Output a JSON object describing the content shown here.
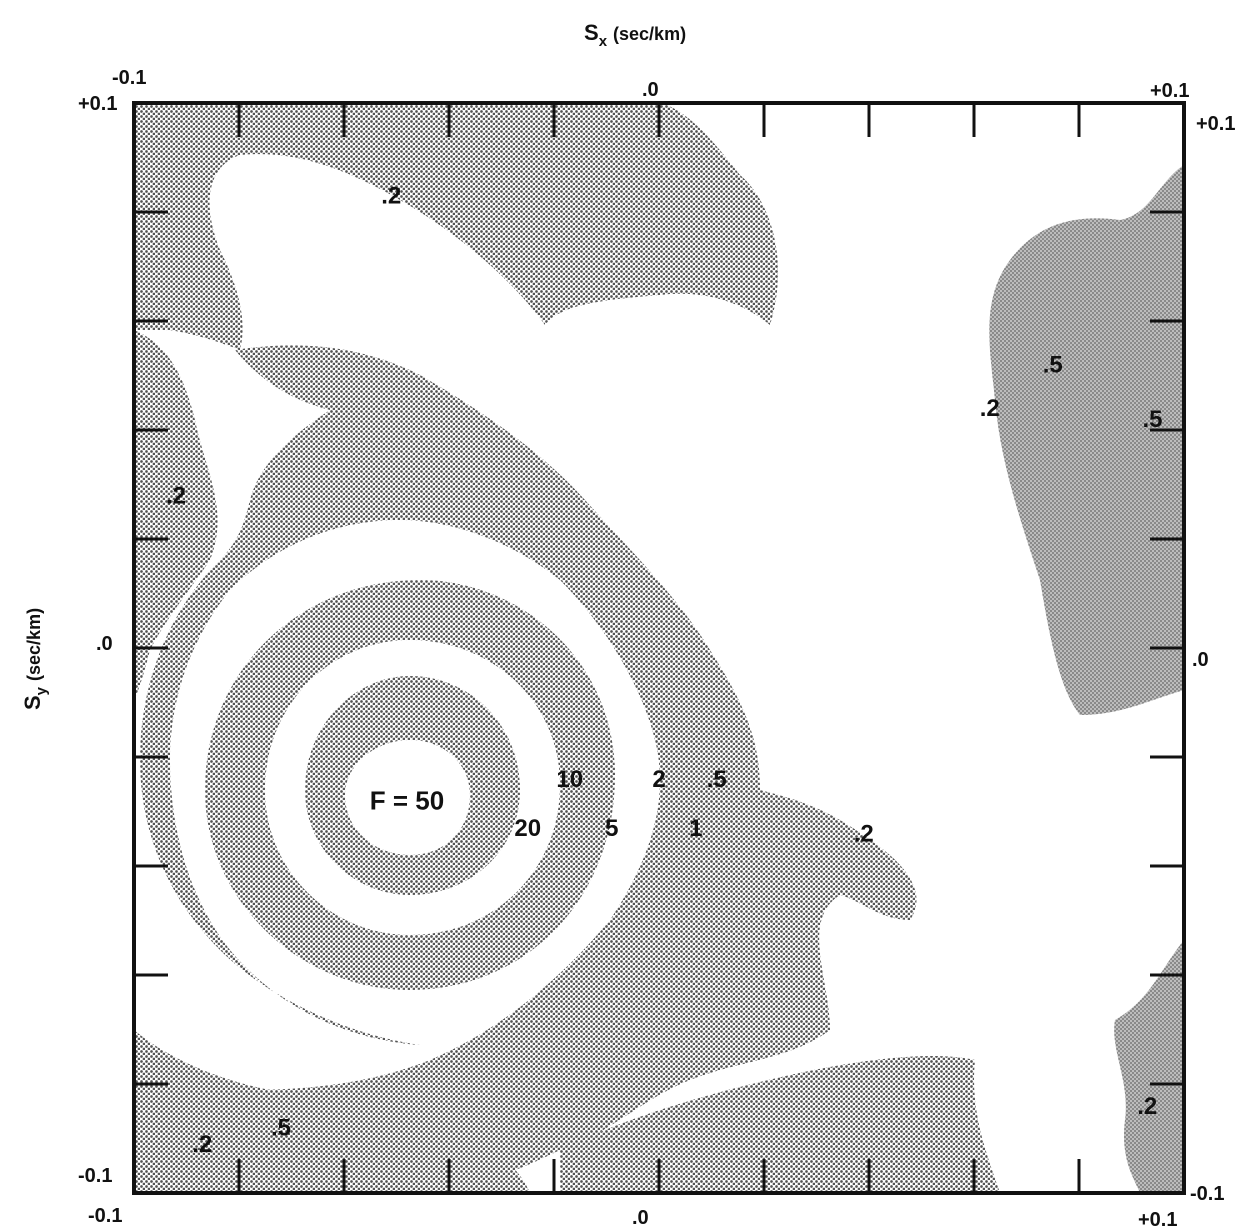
{
  "chart_data": {
    "type": "heatmap",
    "subtype": "contour",
    "title": "",
    "xlabel": "S",
    "xlabel_sub": "x",
    "xlabel_unit": "(sec/km)",
    "ylabel": "S",
    "ylabel_sub": "y",
    "ylabel_unit": "(sec/km)",
    "xlim": [
      -0.1,
      0.1
    ],
    "ylim": [
      -0.1,
      0.1
    ],
    "x_tick_labels": {
      "left": "-0.1",
      "mid": ".0",
      "right": "+0.1"
    },
    "y_tick_labels": {
      "top": "+0.1",
      "mid": ".0",
      "bottom": "-0.1"
    },
    "grid": false,
    "fill_colors": {
      "dotted_band": "#9a9a9a",
      "smooth_band": "#8c8c8c",
      "background": "#ffffff",
      "frame": "#111111"
    },
    "peak": {
      "label": "F = 50",
      "x": -0.048,
      "y": -0.028
    },
    "contour_levels": [
      0.2,
      0.5,
      1,
      2,
      5,
      10,
      20,
      50
    ],
    "contour_labels": [
      {
        "text": "10",
        "x": -0.017,
        "y": -0.024
      },
      {
        "text": "20",
        "x": -0.025,
        "y": -0.033
      },
      {
        "text": "5",
        "x": -0.009,
        "y": -0.033
      },
      {
        "text": "2",
        "x": 0.0,
        "y": -0.024
      },
      {
        "text": "1",
        "x": 0.007,
        "y": -0.033
      },
      {
        "text": ".5",
        "x": 0.011,
        "y": -0.024
      },
      {
        "text": ".2",
        "x": 0.039,
        "y": -0.034
      },
      {
        "text": ".2",
        "x": -0.051,
        "y": 0.083
      },
      {
        "text": ".2",
        "x": -0.092,
        "y": 0.028
      },
      {
        "text": ".2",
        "x": 0.063,
        "y": 0.044
      },
      {
        "text": ".5",
        "x": 0.075,
        "y": 0.052
      },
      {
        "text": ".5",
        "x": 0.094,
        "y": 0.042
      },
      {
        "text": ".2",
        "x": -0.087,
        "y": -0.091
      },
      {
        "text": ".5",
        "x": -0.072,
        "y": -0.088
      },
      {
        "text": ".2",
        "x": 0.093,
        "y": -0.084
      }
    ]
  }
}
